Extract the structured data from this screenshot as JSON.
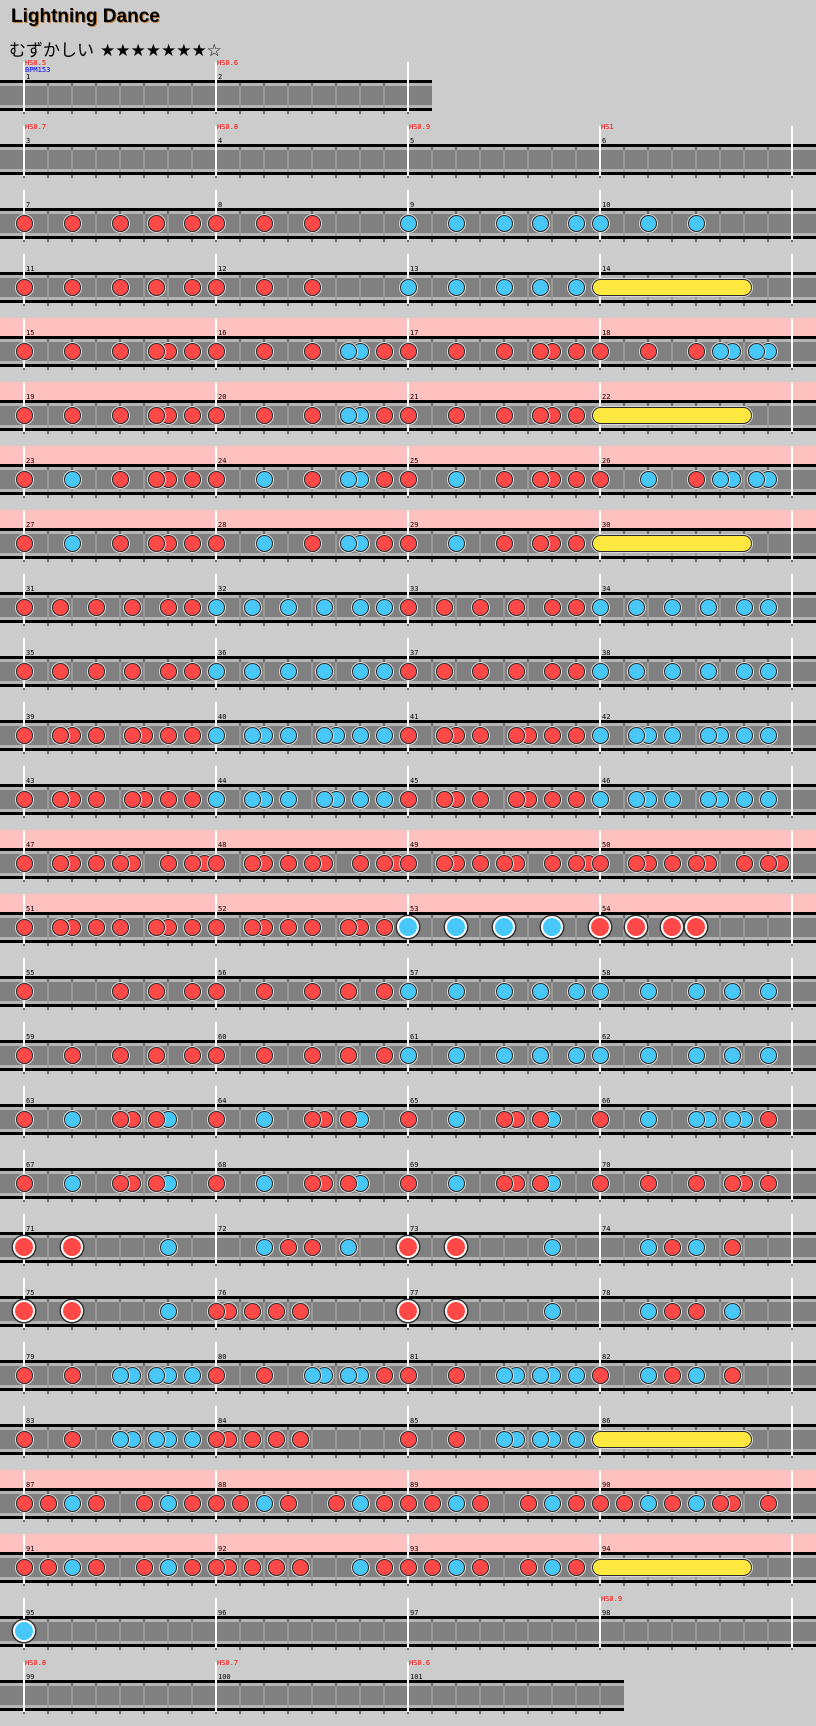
{
  "title": "Lightning Dance",
  "difficulty": "むずかしい",
  "stars": "★★★★★★★☆",
  "rating": {
    "filled": 7,
    "total": 8
  },
  "colors": {
    "don": "#ff4848",
    "ka": "#48c8f8",
    "roll": "#ffe840",
    "gogo": "#ffc0c0",
    "hs_label": "#ff0000",
    "bpm_label": "#0000ff"
  },
  "note_legend": {
    "d": "don",
    "k": "ka",
    "D": "big don",
    "K": "big ka",
    "grid": "16th notes per measure"
  },
  "rows": [
    {
      "gogo": false,
      "measures": [
        {
          "n": "1",
          "hs": "HS0.5",
          "bpm": "BPM153",
          "notes": ""
        },
        {
          "n": "2",
          "hs": "HS0.6",
          "notes": ""
        }
      ]
    },
    {
      "gogo": false,
      "measures": [
        {
          "n": "3",
          "hs": "HS0.7",
          "notes": ""
        },
        {
          "n": "4",
          "hs": "HS0.8",
          "notes": ""
        },
        {
          "n": "5",
          "hs": "HS0.9",
          "notes": ""
        },
        {
          "n": "6",
          "hs": "HS1",
          "notes": ""
        }
      ]
    },
    {
      "gogo": false,
      "measures": [
        {
          "n": "7",
          "notes": "d...d...d..d..d."
        },
        {
          "n": "8",
          "notes": "d...d...d......."
        },
        {
          "n": "9",
          "notes": "k...k...k..k..k."
        },
        {
          "n": "10",
          "notes": "k...k...k......."
        }
      ]
    },
    {
      "gogo": false,
      "measures": [
        {
          "n": "11",
          "notes": "d...d...d..d..d."
        },
        {
          "n": "12",
          "notes": "d...d...d......."
        },
        {
          "n": "13",
          "notes": "k...k...k..k..k."
        },
        {
          "n": "14",
          "notes": "",
          "roll": [
            0,
            12
          ]
        }
      ]
    },
    {
      "gogo": true,
      "measures": [
        {
          "n": "15",
          "notes": "d...d...d..dd.d."
        },
        {
          "n": "16",
          "notes": "d...d...d..kk.d."
        },
        {
          "n": "17",
          "notes": "d...d...d..dd.d."
        },
        {
          "n": "18",
          "notes": "d...d...d.kk.kk."
        }
      ]
    },
    {
      "gogo": true,
      "measures": [
        {
          "n": "19",
          "notes": "d...d...d..dd.d."
        },
        {
          "n": "20",
          "notes": "d...d...d..kk.d."
        },
        {
          "n": "21",
          "notes": "d...d...d..dd.d."
        },
        {
          "n": "22",
          "notes": "",
          "roll": [
            0,
            12
          ]
        }
      ]
    },
    {
      "gogo": true,
      "measures": [
        {
          "n": "23",
          "notes": "d...k...d..dd.d."
        },
        {
          "n": "24",
          "notes": "d...k...d..kk.d."
        },
        {
          "n": "25",
          "notes": "d...k...d..dd.d."
        },
        {
          "n": "26",
          "notes": "d...k...d.kk.kk."
        }
      ]
    },
    {
      "gogo": true,
      "measures": [
        {
          "n": "27",
          "notes": "d...k...d..dd.d."
        },
        {
          "n": "28",
          "notes": "d...k...d..kk.d."
        },
        {
          "n": "29",
          "notes": "d...k...d..dd.d."
        },
        {
          "n": "30",
          "notes": "",
          "roll": [
            0,
            12
          ]
        }
      ]
    },
    {
      "gogo": false,
      "measures": [
        {
          "n": "31",
          "notes": "d..d..d..d..d.d."
        },
        {
          "n": "32",
          "notes": "k..k..k..k..k.k."
        },
        {
          "n": "33",
          "notes": "d..d..d..d..d.d."
        },
        {
          "n": "34",
          "notes": "k..k..k..k..k.k."
        }
      ]
    },
    {
      "gogo": false,
      "measures": [
        {
          "n": "35",
          "notes": "d..d..d..d..d.d."
        },
        {
          "n": "36",
          "notes": "k..k..k..k..k.k."
        },
        {
          "n": "37",
          "notes": "d..d..d..d..d.d."
        },
        {
          "n": "38",
          "notes": "k..k..k..k..k.k."
        }
      ]
    },
    {
      "gogo": false,
      "measures": [
        {
          "n": "39",
          "notes": "d..dd.d..dd.d.d."
        },
        {
          "n": "40",
          "notes": "k..kk.k..kk.k.k."
        },
        {
          "n": "41",
          "notes": "d..dd.d..dd.d.d."
        },
        {
          "n": "42",
          "notes": "k..kk.k..kk.k.k."
        }
      ]
    },
    {
      "gogo": false,
      "measures": [
        {
          "n": "43",
          "notes": "d..dd.d..dd.d.d."
        },
        {
          "n": "44",
          "notes": "k..kk.k..kk.k.k."
        },
        {
          "n": "45",
          "notes": "d..dd.d..dd.d.d."
        },
        {
          "n": "46",
          "notes": "k..kk.k..kk.k.k."
        }
      ]
    },
    {
      "gogo": true,
      "measures": [
        {
          "n": "47",
          "notes": "d..dd.d.dd..d.dd"
        },
        {
          "n": "48",
          "notes": "d..dd.d.dd..d.dd"
        },
        {
          "n": "49",
          "notes": "d..dd.d.dd..d.dd"
        },
        {
          "n": "50",
          "notes": "d..dd.d.dd..d.dd"
        }
      ]
    },
    {
      "gogo": true,
      "measures": [
        {
          "n": "51",
          "notes": "d..dd.d.d..dd.d."
        },
        {
          "n": "52",
          "notes": "d..dd.d.d..dd.d."
        },
        {
          "n": "53",
          "notes": "K...K...K...K..."
        },
        {
          "n": "54",
          "notes": "D..D..D.D......."
        }
      ]
    },
    {
      "gogo": false,
      "measures": [
        {
          "n": "55",
          "notes": "d.......d..d..d."
        },
        {
          "n": "56",
          "notes": "d...d...d..d..d."
        },
        {
          "n": "57",
          "notes": "k...k...k..k..k."
        },
        {
          "n": "58",
          "notes": "k...k...k..k..k."
        }
      ]
    },
    {
      "gogo": false,
      "measures": [
        {
          "n": "59",
          "notes": "d...d...d..d..d."
        },
        {
          "n": "60",
          "notes": "d...d...d..d..d."
        },
        {
          "n": "61",
          "notes": "k...k...k..k..k."
        },
        {
          "n": "62",
          "notes": "k...k...k..k..k."
        }
      ]
    },
    {
      "gogo": false,
      "measures": [
        {
          "n": "63",
          "notes": "d...k...dd.dk..."
        },
        {
          "n": "64",
          "notes": "d...k...dd.dk..."
        },
        {
          "n": "65",
          "notes": "d...k...dd.dk..."
        },
        {
          "n": "66",
          "notes": "d...k...kk.kk.d."
        }
      ]
    },
    {
      "gogo": false,
      "measures": [
        {
          "n": "67",
          "notes": "d...k...dd.dk..."
        },
        {
          "n": "68",
          "notes": "d...k...dd.dk..."
        },
        {
          "n": "69",
          "notes": "d...k...dd.dk..."
        },
        {
          "n": "70",
          "notes": "d...d...d..dd.d."
        }
      ]
    },
    {
      "gogo": false,
      "measures": [
        {
          "n": "71",
          "notes": "D...D.......k..."
        },
        {
          "n": "72",
          "notes": "....k.d.d..k...."
        },
        {
          "n": "73",
          "notes": "D...D.......k..."
        },
        {
          "n": "74",
          "notes": "....k.d.k..d...."
        }
      ]
    },
    {
      "gogo": false,
      "measures": [
        {
          "n": "75",
          "notes": "D...D.......k..."
        },
        {
          "n": "76",
          "notes": "dd.d.d.d........"
        },
        {
          "n": "77",
          "notes": "D...D.......k..."
        },
        {
          "n": "78",
          "notes": "....k.d.d..k...."
        }
      ]
    },
    {
      "gogo": false,
      "measures": [
        {
          "n": "79",
          "notes": "d...d...kk.kk.k."
        },
        {
          "n": "80",
          "notes": "d...d...kk.kk.d."
        },
        {
          "n": "81",
          "notes": "d...d...kk.kk.k."
        },
        {
          "n": "82",
          "notes": "d...k.d.k..d...."
        }
      ]
    },
    {
      "gogo": false,
      "measures": [
        {
          "n": "83",
          "notes": "d...d...kk.kk.k."
        },
        {
          "n": "84",
          "notes": "dd.d.d.d........"
        },
        {
          "n": "85",
          "notes": "d...d...kk.kk.k."
        },
        {
          "n": "86",
          "notes": "",
          "roll": [
            0,
            12
          ]
        }
      ]
    },
    {
      "gogo": true,
      "measures": [
        {
          "n": "87",
          "notes": "d.d.k.d...d.k.d."
        },
        {
          "n": "88",
          "notes": "d.d.k.d...d.k.d."
        },
        {
          "n": "89",
          "notes": "d.d.k.d...d.k.d."
        },
        {
          "n": "90",
          "notes": "d.d.k.d.k.dd..d."
        }
      ]
    },
    {
      "gogo": true,
      "measures": [
        {
          "n": "91",
          "notes": "d.d.k.d...d.k.d."
        },
        {
          "n": "92",
          "notes": "dd.d.d.d....k.d."
        },
        {
          "n": "93",
          "notes": "d.d.k.d...d.k.d."
        },
        {
          "n": "94",
          "notes": "",
          "roll": [
            0,
            12
          ]
        }
      ]
    },
    {
      "gogo": false,
      "measures": [
        {
          "n": "95",
          "notes": "K..............."
        },
        {
          "n": "96",
          "notes": ""
        },
        {
          "n": "97",
          "notes": ""
        },
        {
          "n": "98",
          "hs": "HS0.9",
          "notes": ""
        }
      ]
    },
    {
      "gogo": false,
      "measures": [
        {
          "n": "99",
          "hs": "HS0.8",
          "notes": ""
        },
        {
          "n": "100",
          "hs": "HS0.7",
          "notes": ""
        },
        {
          "n": "101",
          "hs": "HS0.6",
          "notes": ""
        }
      ]
    }
  ]
}
